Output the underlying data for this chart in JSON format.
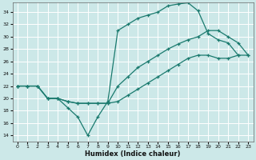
{
  "xlabel": "Humidex (Indice chaleur)",
  "bg_color": "#cce8e8",
  "line_color": "#1a7a6e",
  "grid_color": "#ffffff",
  "xlim": [
    -0.5,
    23.5
  ],
  "ylim": [
    13,
    35.5
  ],
  "yticks": [
    14,
    16,
    18,
    20,
    22,
    24,
    26,
    28,
    30,
    32,
    34
  ],
  "xticks": [
    0,
    1,
    2,
    3,
    4,
    5,
    6,
    7,
    8,
    9,
    10,
    11,
    12,
    13,
    14,
    15,
    16,
    17,
    18,
    19,
    20,
    21,
    22,
    23
  ],
  "line1_x": [
    0,
    1,
    2,
    3,
    4,
    5,
    6,
    7,
    8,
    9,
    10,
    11,
    12,
    13,
    14,
    15,
    16,
    17,
    18,
    19,
    20,
    21,
    22
  ],
  "line1_y": [
    22,
    22,
    22,
    20,
    20,
    18.5,
    17,
    14,
    17,
    19.5,
    31,
    32,
    33,
    33.5,
    34,
    35,
    35.3,
    35.5,
    34.2,
    30.5,
    29.5,
    29,
    27
  ],
  "line2_x": [
    0,
    1,
    2,
    3,
    4,
    5,
    6,
    7,
    8,
    9,
    10,
    11,
    12,
    13,
    14,
    15,
    16,
    17,
    18,
    19,
    20,
    21,
    22,
    23
  ],
  "line2_y": [
    22,
    22,
    22,
    20,
    20,
    19.5,
    19.2,
    19.2,
    19.2,
    19.2,
    22,
    23.5,
    25,
    26,
    27,
    28,
    28.8,
    29.5,
    30,
    31,
    31,
    30,
    29,
    27
  ],
  "line3_x": [
    0,
    1,
    2,
    3,
    4,
    5,
    6,
    7,
    8,
    9,
    10,
    11,
    12,
    13,
    14,
    15,
    16,
    17,
    18,
    19,
    20,
    21,
    22,
    23
  ],
  "line3_y": [
    22,
    22,
    22,
    20,
    20,
    19.5,
    19.2,
    19.2,
    19.2,
    19.2,
    19.5,
    20.5,
    21.5,
    22.5,
    23.5,
    24.5,
    25.5,
    26.5,
    27,
    27,
    26.5,
    26.5,
    27,
    27
  ]
}
